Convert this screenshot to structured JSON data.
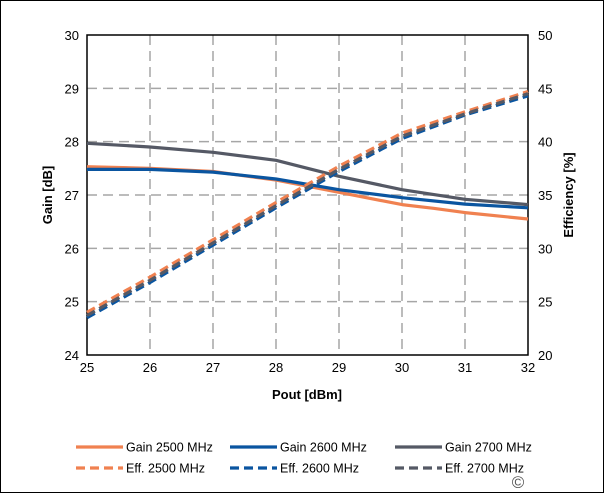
{
  "chart_data": {
    "type": "line",
    "title": "",
    "xlabel": "Pout [dBm]",
    "ylabel": "Gain [dB]",
    "ylabel_right": "Efficiency [%]",
    "xlim": [
      25,
      32
    ],
    "ylim": [
      24,
      30
    ],
    "ylim_right": [
      20,
      50
    ],
    "x_ticks": [
      "25",
      "26",
      "27",
      "28",
      "29",
      "30",
      "31",
      "32"
    ],
    "y_ticks": [
      "24",
      "25",
      "26",
      "27",
      "28",
      "29",
      "30"
    ],
    "y_ticks_right": [
      "20",
      "25",
      "30",
      "35",
      "40",
      "45",
      "50"
    ],
    "grid": true,
    "legend_position": "bottom",
    "series": [
      {
        "name": "Gain 2500 MHz",
        "axis": "left",
        "style": "solid",
        "color": "#F08150",
        "x": [
          25,
          26,
          27,
          28,
          29,
          30,
          30.5,
          31,
          32
        ],
        "y": [
          27.53,
          27.5,
          27.44,
          27.28,
          27.05,
          26.82,
          26.75,
          26.67,
          26.55
        ]
      },
      {
        "name": "Gain 2600 MHz",
        "axis": "left",
        "style": "solid",
        "color": "#0A55A0",
        "x": [
          25,
          26,
          27,
          28,
          29,
          30,
          31,
          32
        ],
        "y": [
          27.48,
          27.48,
          27.43,
          27.3,
          27.1,
          26.95,
          26.83,
          26.76
        ]
      },
      {
        "name": "Gain 2700 MHz",
        "axis": "left",
        "style": "solid",
        "color": "#555965",
        "x": [
          25,
          26,
          27,
          28,
          29,
          30,
          31,
          32
        ],
        "y": [
          27.97,
          27.9,
          27.8,
          27.65,
          27.35,
          27.1,
          26.92,
          26.82
        ]
      },
      {
        "name": "Eff. 2500 MHz",
        "axis": "right",
        "style": "dashed",
        "color": "#F08150",
        "x": [
          25,
          26,
          27,
          28,
          29,
          30,
          31,
          32
        ],
        "y": [
          24.0,
          27.3,
          30.8,
          34.3,
          37.7,
          40.8,
          42.8,
          44.7
        ]
      },
      {
        "name": "Eff. 2600 MHz",
        "axis": "right",
        "style": "dashed",
        "color": "#0A55A0",
        "x": [
          25,
          26,
          27,
          28,
          29,
          30,
          31,
          32
        ],
        "y": [
          23.5,
          26.8,
          30.3,
          33.8,
          37.2,
          40.3,
          42.5,
          44.3
        ]
      },
      {
        "name": "Eff. 2700 MHz",
        "axis": "right",
        "style": "dashed",
        "color": "#555965",
        "x": [
          25,
          26,
          27,
          28,
          29,
          30,
          31,
          32
        ],
        "y": [
          23.7,
          27.0,
          30.5,
          34.0,
          37.4,
          40.5,
          42.6,
          44.5
        ]
      }
    ]
  },
  "watermark": "©"
}
